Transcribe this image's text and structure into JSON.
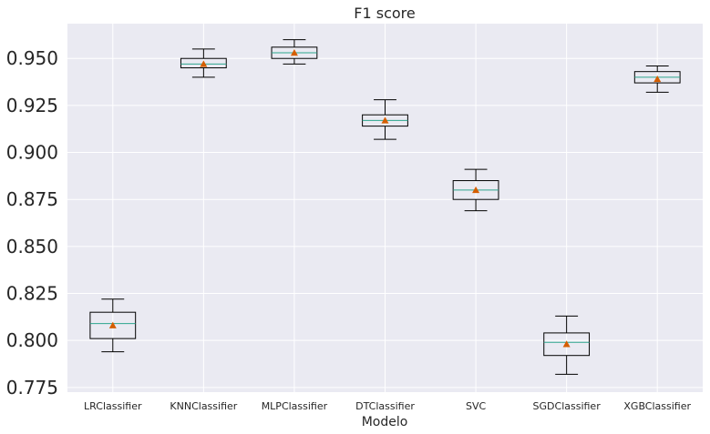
{
  "chart_data": {
    "type": "box",
    "title": "F1 score",
    "xlabel": "Modelo",
    "ylabel": "",
    "ylim": [
      0.7725,
      0.9685
    ],
    "yticks": [
      0.775,
      0.8,
      0.825,
      0.85,
      0.875,
      0.9,
      0.925,
      0.95
    ],
    "ytick_labels": [
      "0.775",
      "0.800",
      "0.825",
      "0.850",
      "0.875",
      "0.900",
      "0.925",
      "0.950"
    ],
    "grid": true,
    "colors": {
      "background": "#eaeaf2",
      "grid": "#ffffff",
      "box": "#000000",
      "median": "#2ca58d",
      "mean_marker": "#d55e00"
    },
    "categories": [
      "LRClassifier",
      "KNNClassifier",
      "MLPClassifier",
      "DTClassifier",
      "SVC",
      "SGDClassifier",
      "XGBClassifier"
    ],
    "boxes": [
      {
        "label": "LRClassifier",
        "whisker_low": 0.794,
        "q1": 0.801,
        "median": 0.809,
        "q3": 0.815,
        "whisker_high": 0.822,
        "mean": 0.808
      },
      {
        "label": "KNNClassifier",
        "whisker_low": 0.94,
        "q1": 0.945,
        "median": 0.947,
        "q3": 0.95,
        "whisker_high": 0.955,
        "mean": 0.947
      },
      {
        "label": "MLPClassifier",
        "whisker_low": 0.947,
        "q1": 0.95,
        "median": 0.953,
        "q3": 0.956,
        "whisker_high": 0.96,
        "mean": 0.953
      },
      {
        "label": "DTClassifier",
        "whisker_low": 0.907,
        "q1": 0.914,
        "median": 0.917,
        "q3": 0.92,
        "whisker_high": 0.928,
        "mean": 0.917
      },
      {
        "label": "SVC",
        "whisker_low": 0.869,
        "q1": 0.875,
        "median": 0.88,
        "q3": 0.885,
        "whisker_high": 0.891,
        "mean": 0.88
      },
      {
        "label": "SGDClassifier",
        "whisker_low": 0.782,
        "q1": 0.792,
        "median": 0.799,
        "q3": 0.804,
        "whisker_high": 0.813,
        "mean": 0.798
      },
      {
        "label": "XGBClassifier",
        "whisker_low": 0.932,
        "q1": 0.937,
        "median": 0.94,
        "q3": 0.943,
        "whisker_high": 0.946,
        "mean": 0.939
      }
    ]
  }
}
